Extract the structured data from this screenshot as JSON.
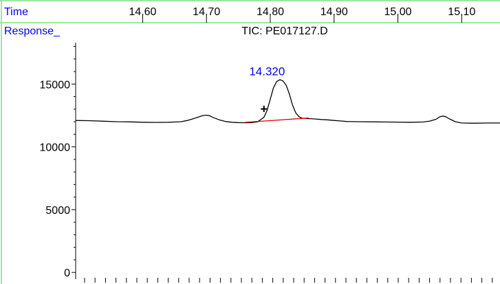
{
  "header": {
    "time_label": "Time",
    "response_label": "Response_"
  },
  "colors": {
    "frame": "#7fe07f",
    "label_blue": "#0000ff",
    "trace": "#000000",
    "baseline": "#e00000"
  },
  "chart_data": {
    "type": "line",
    "title": "TIC: PE017127.D",
    "xlabel": "Time",
    "ylabel": "Response_",
    "x_ticks": [
      "14.60",
      "14.70",
      "14.80",
      "14.90",
      "15.00",
      "15.10"
    ],
    "x_tick_values": [
      14.6,
      14.7,
      14.8,
      14.9,
      15.0,
      15.1
    ],
    "y_ticks": [
      "0",
      "5000",
      "10000",
      "15000"
    ],
    "y_tick_values": [
      0,
      5000,
      10000,
      15000
    ],
    "xlim": [
      14.495,
      15.16
    ],
    "ylim": [
      -100,
      18300
    ],
    "grid": false,
    "series": [
      {
        "x": [
          14.495,
          14.52,
          14.54,
          14.56,
          14.58,
          14.6,
          14.62,
          14.64,
          14.66,
          14.67,
          14.68,
          14.69,
          14.695,
          14.7,
          14.705,
          14.71,
          14.72,
          14.73,
          14.74,
          14.75,
          14.76,
          14.77,
          14.78,
          14.79,
          14.795,
          14.8,
          14.805,
          14.81,
          14.815,
          14.82,
          14.825,
          14.83,
          14.835,
          14.84,
          14.845,
          14.85,
          14.86,
          14.87,
          14.88,
          14.89,
          14.9,
          14.91,
          14.92,
          14.94,
          14.96,
          14.98,
          15.0,
          15.02,
          15.04,
          15.05,
          15.06,
          15.065,
          15.07,
          15.075,
          15.08,
          15.09,
          15.1,
          15.12,
          15.14,
          15.16
        ],
        "values": [
          12100,
          12080,
          12040,
          12000,
          11990,
          11960,
          11950,
          11960,
          12000,
          12100,
          12250,
          12420,
          12500,
          12520,
          12480,
          12350,
          12150,
          12020,
          11960,
          11930,
          11920,
          11930,
          11990,
          12350,
          12900,
          13800,
          14700,
          15200,
          15350,
          15250,
          14900,
          14200,
          13300,
          12700,
          12400,
          12280,
          12250,
          12220,
          12180,
          12150,
          12100,
          12060,
          12020,
          12000,
          11990,
          11980,
          11970,
          11960,
          11980,
          12050,
          12200,
          12380,
          12450,
          12400,
          12250,
          12000,
          11900,
          11880,
          11900,
          11900
        ]
      }
    ],
    "annotations": [
      {
        "text": "14.320",
        "x": 14.795,
        "y": 15700,
        "color": "#0000ff"
      },
      {
        "text": "+",
        "x": 14.79,
        "y": 12700,
        "color": "#000000"
      }
    ],
    "baseline_segment": {
      "x": [
        14.76,
        14.86
      ],
      "y": [
        11950,
        12300
      ],
      "color": "#e00000"
    }
  }
}
